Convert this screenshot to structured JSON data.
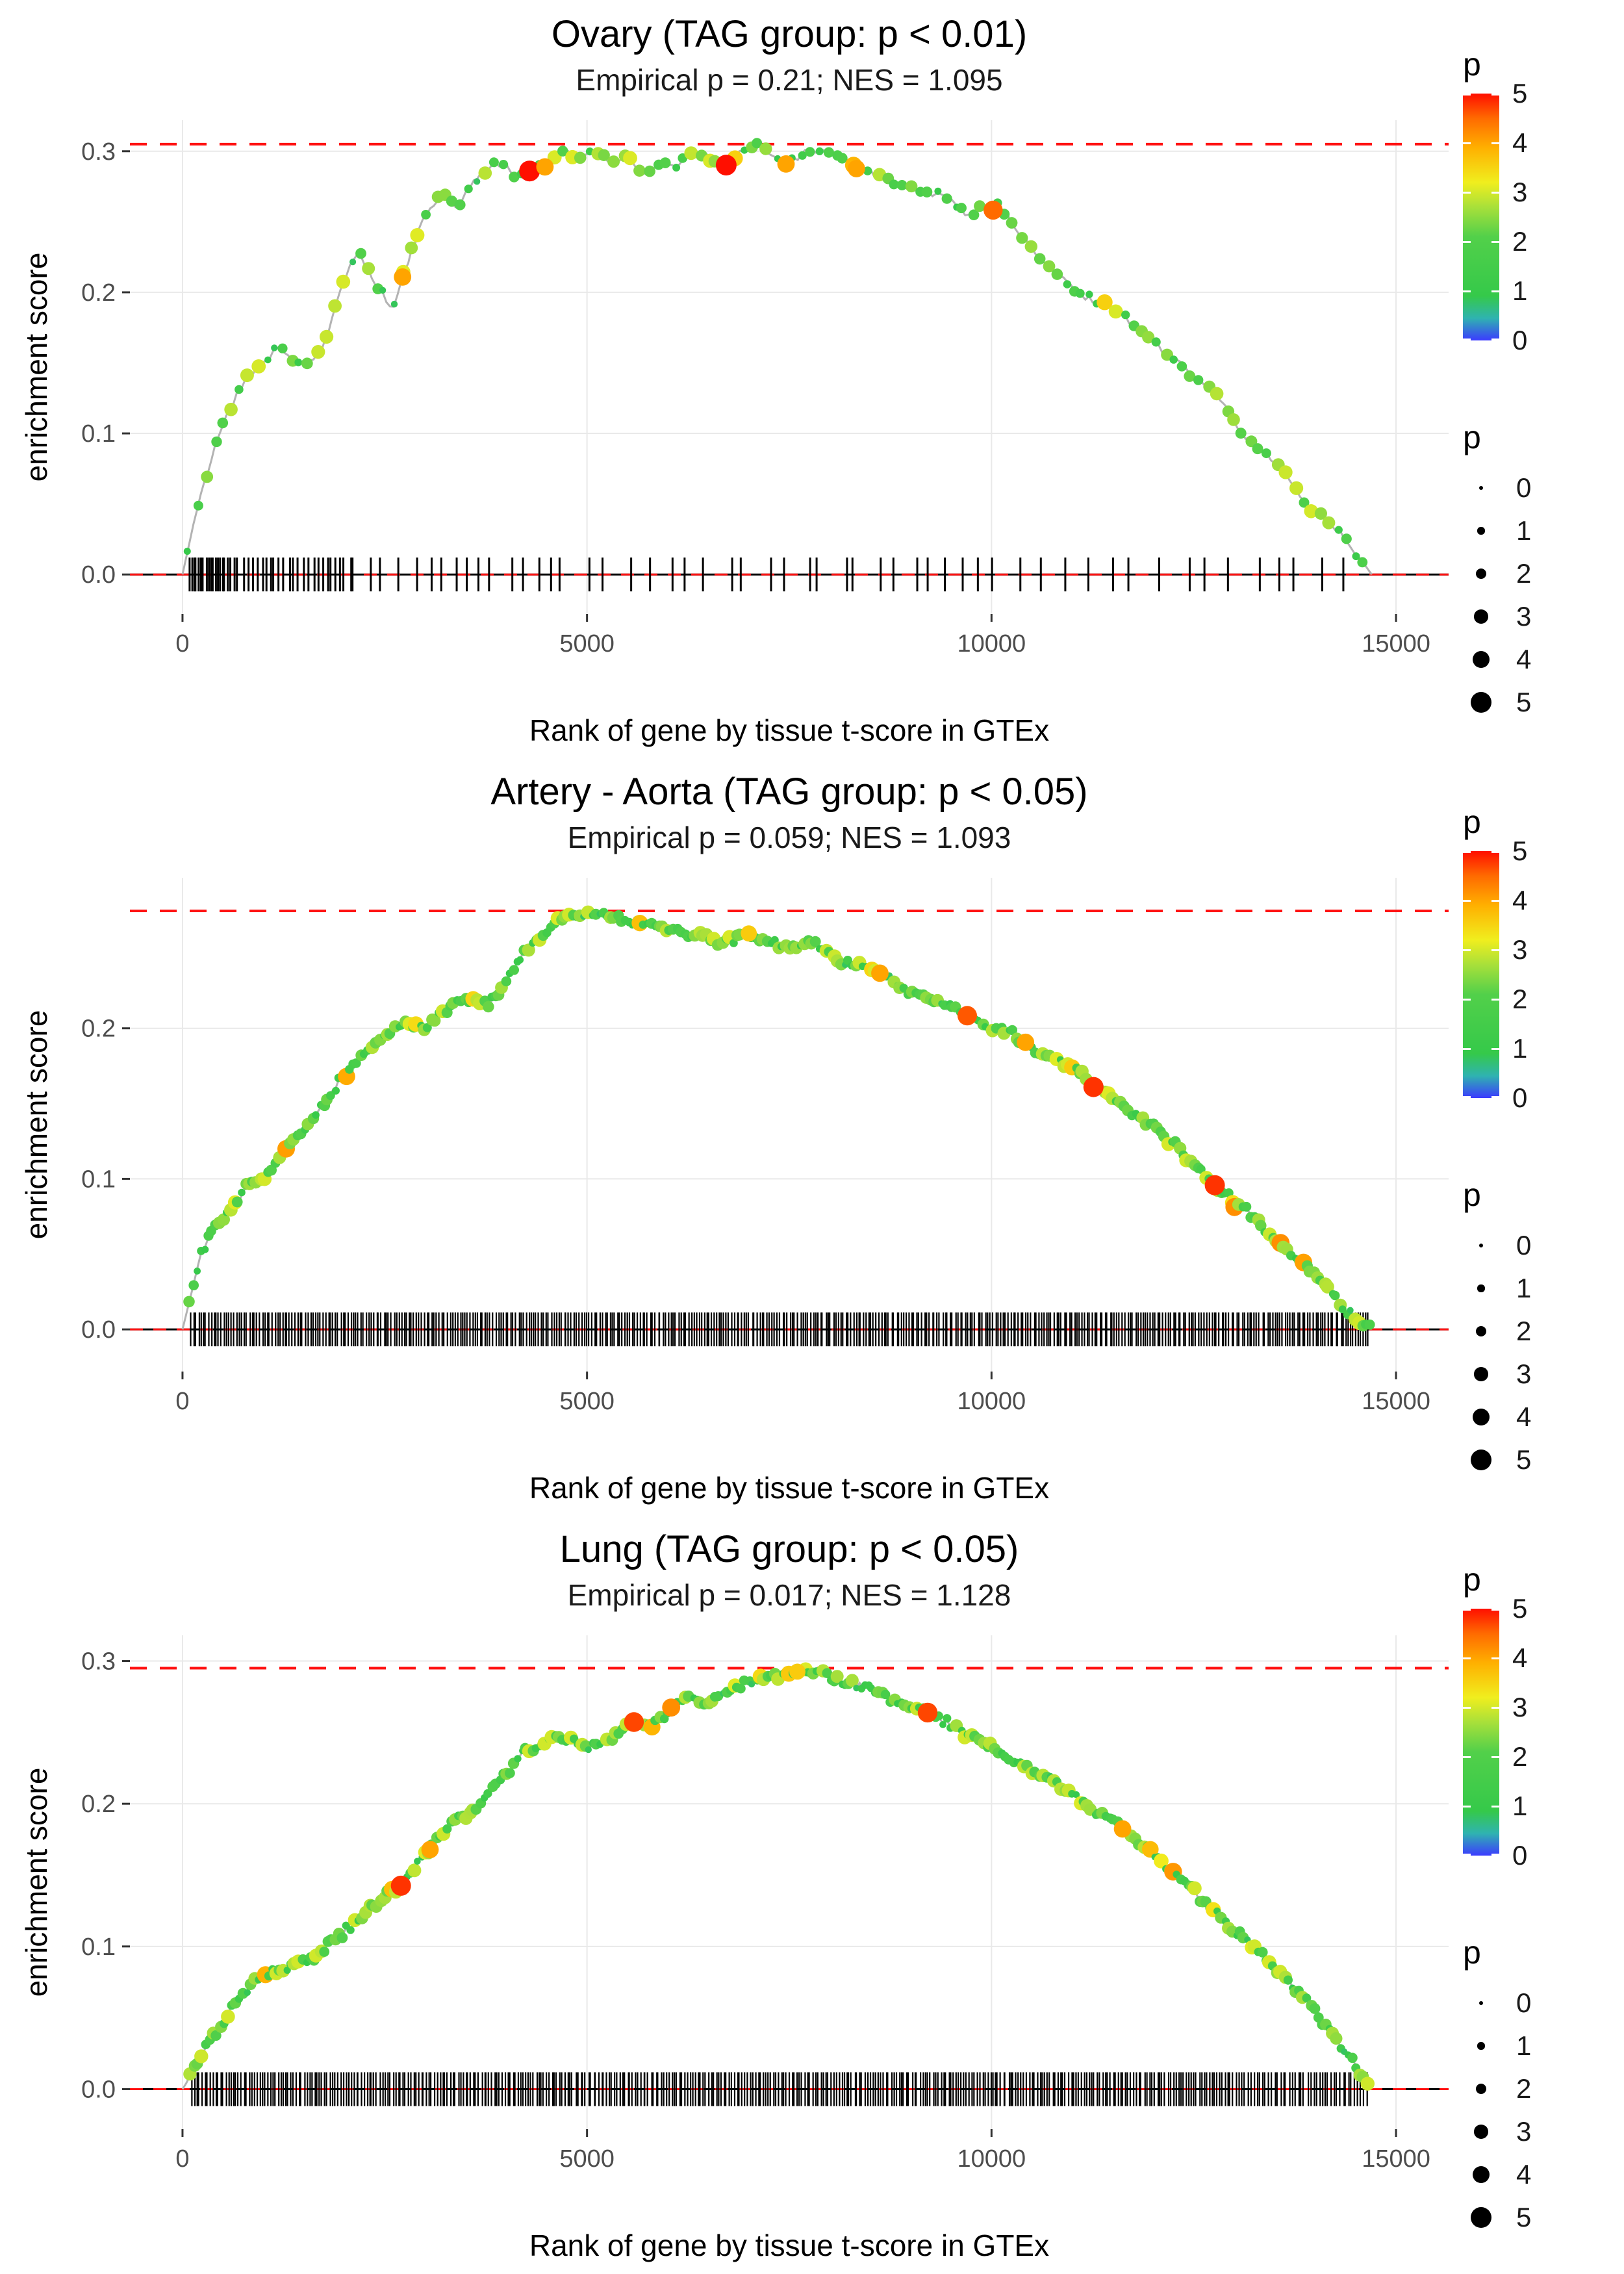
{
  "figure": {
    "background": "#ffffff",
    "accent_red": "#ff1212",
    "grid_color": "#e9e9e9",
    "axis_text_color": "#4d4d4d",
    "title_color": "#000000",
    "curve_color": "#b3b3b3",
    "rug_color": "#000000"
  },
  "colormap": [
    [
      0,
      "#3b3bff"
    ],
    [
      0.45,
      "#2fb3b0"
    ],
    [
      0.9,
      "#35c94a"
    ],
    [
      2.1,
      "#52d04a"
    ],
    [
      2.7,
      "#a8e03a"
    ],
    [
      3.2,
      "#f0ee1e"
    ],
    [
      3.9,
      "#ffb000"
    ],
    [
      4.5,
      "#ff6a00"
    ],
    [
      5,
      "#ff0f00"
    ]
  ],
  "chart_data": [
    {
      "type": "line",
      "title": "Ovary (TAG group: p < 0.01)",
      "subtitle": "Empirical p = 0.21; NES = 1.095",
      "xlabel": "Rank of gene by tissue t-score in GTEx",
      "ylabel": "enrichment score",
      "x_ticks": [
        0,
        5000,
        10000,
        15000
      ],
      "x_tick_labels": [
        "0",
        "5000",
        "10000",
        "15000"
      ],
      "y_ticks": [
        0,
        0.1,
        0.2,
        0.3
      ],
      "y_tick_labels": [
        "0.0",
        "0.1",
        "0.2",
        "0.3"
      ],
      "xlim": [
        -650,
        15650
      ],
      "ylim": [
        -0.028,
        0.322
      ],
      "max_es": 0.305,
      "zero_line": 0,
      "nes": 1.095,
      "empirical_p": 0.21,
      "curve": {
        "x": [
          0,
          150,
          300,
          450,
          600,
          800,
          1000,
          1150,
          1300,
          1500,
          1700,
          1850,
          2000,
          2150,
          2300,
          2450,
          2600,
          2750,
          2900,
          3050,
          3200,
          3400,
          3600,
          3800,
          4000,
          4150,
          4300,
          4500,
          4700,
          4900,
          5100,
          5300,
          5500,
          5700,
          5900,
          6100,
          6300,
          6500,
          6700,
          6900,
          7100,
          7300,
          7500,
          7700,
          7900,
          8100,
          8300,
          8500,
          8700,
          8900,
          9100,
          9300,
          9500,
          9700,
          9900,
          10100,
          10300,
          10500,
          10700,
          10900,
          11100,
          11300,
          11500,
          11700,
          11900,
          12100,
          12300,
          12500,
          12700,
          12900,
          13100,
          13300,
          13500,
          13700,
          13900,
          14100,
          14300,
          14500,
          14700
        ],
        "y": [
          0,
          0.04,
          0.07,
          0.1,
          0.12,
          0.14,
          0.15,
          0.16,
          0.155,
          0.15,
          0.155,
          0.18,
          0.21,
          0.23,
          0.215,
          0.2,
          0.19,
          0.215,
          0.24,
          0.26,
          0.27,
          0.26,
          0.28,
          0.29,
          0.29,
          0.28,
          0.285,
          0.29,
          0.3,
          0.295,
          0.3,
          0.29,
          0.295,
          0.285,
          0.29,
          0.29,
          0.3,
          0.295,
          0.29,
          0.3,
          0.305,
          0.295,
          0.29,
          0.3,
          0.3,
          0.295,
          0.29,
          0.285,
          0.28,
          0.275,
          0.27,
          0.27,
          0.265,
          0.255,
          0.26,
          0.26,
          0.245,
          0.23,
          0.22,
          0.21,
          0.2,
          0.19,
          0.19,
          0.18,
          0.17,
          0.16,
          0.15,
          0.14,
          0.13,
          0.12,
          0.1,
          0.09,
          0.08,
          0.065,
          0.05,
          0.04,
          0.03,
          0.015,
          0
        ]
      },
      "dots": {
        "start": 90,
        "end": 14660,
        "step": 105,
        "seed": 7
      },
      "highlights": [
        {
          "x": 2720,
          "p": 4
        },
        {
          "x": 4290,
          "p": 5
        },
        {
          "x": 4480,
          "p": 4
        },
        {
          "x": 6720,
          "p": 5
        },
        {
          "x": 7460,
          "p": 4
        },
        {
          "x": 8330,
          "p": 4
        },
        {
          "x": 10020,
          "p": 4.5
        }
      ],
      "noise_seed": 21,
      "rug": {
        "seed": 31,
        "width": 3,
        "segments": [
          {
            "from": 70,
            "to": 600,
            "count": 18
          },
          {
            "from": 600,
            "to": 2100,
            "count": 26
          },
          {
            "from": 2100,
            "to": 4600,
            "count": 15
          },
          {
            "from": 4600,
            "to": 7600,
            "count": 12
          },
          {
            "from": 7600,
            "to": 10200,
            "count": 12
          },
          {
            "from": 10200,
            "to": 12800,
            "count": 9
          },
          {
            "from": 12800,
            "to": 14600,
            "count": 6
          }
        ]
      },
      "legend": {
        "color_title": "p",
        "color_ticks": [
          0,
          1,
          2,
          3,
          4,
          5
        ],
        "size_title": "p",
        "size_ticks": [
          0,
          1,
          2,
          3,
          4,
          5
        ]
      }
    },
    {
      "type": "line",
      "title": "Artery - Aorta (TAG group: p < 0.05)",
      "subtitle": "Empirical p = 0.059; NES = 1.093",
      "xlabel": "Rank of gene by tissue t-score in GTEx",
      "ylabel": "enrichment score",
      "x_ticks": [
        0,
        5000,
        10000,
        15000
      ],
      "x_tick_labels": [
        "0",
        "5000",
        "10000",
        "15000"
      ],
      "y_ticks": [
        0,
        0.1,
        0.2
      ],
      "y_tick_labels": [
        "0.0",
        "0.1",
        "0.2"
      ],
      "xlim": [
        -650,
        15650
      ],
      "ylim": [
        -0.028,
        0.3
      ],
      "max_es": 0.278,
      "zero_line": 0,
      "nes": 1.093,
      "empirical_p": 0.059,
      "curve": {
        "x": [
          0,
          200,
          400,
          600,
          800,
          1000,
          1200,
          1400,
          1600,
          1800,
          2000,
          2200,
          2400,
          2600,
          2800,
          3000,
          3200,
          3400,
          3600,
          3800,
          4000,
          4200,
          4400,
          4600,
          4800,
          5000,
          5200,
          5400,
          5600,
          5800,
          6000,
          6200,
          6400,
          6600,
          6800,
          7000,
          7200,
          7400,
          7600,
          7800,
          8000,
          8200,
          8400,
          8600,
          8800,
          9000,
          9200,
          9400,
          9600,
          9800,
          10000,
          10200,
          10400,
          10600,
          10800,
          11000,
          11200,
          11400,
          11600,
          11800,
          12000,
          12200,
          12400,
          12600,
          12800,
          13000,
          13200,
          13400,
          13600,
          13800,
          14000,
          14200,
          14400,
          14700
        ],
        "y": [
          0,
          0.045,
          0.07,
          0.08,
          0.095,
          0.1,
          0.115,
          0.13,
          0.14,
          0.155,
          0.17,
          0.18,
          0.19,
          0.2,
          0.205,
          0.2,
          0.21,
          0.22,
          0.22,
          0.215,
          0.23,
          0.25,
          0.26,
          0.27,
          0.275,
          0.278,
          0.275,
          0.272,
          0.27,
          0.268,
          0.265,
          0.262,
          0.262,
          0.258,
          0.26,
          0.262,
          0.258,
          0.255,
          0.255,
          0.258,
          0.25,
          0.245,
          0.24,
          0.238,
          0.23,
          0.225,
          0.22,
          0.215,
          0.21,
          0.205,
          0.2,
          0.198,
          0.19,
          0.185,
          0.18,
          0.175,
          0.165,
          0.158,
          0.15,
          0.142,
          0.135,
          0.125,
          0.115,
          0.105,
          0.095,
          0.085,
          0.075,
          0.065,
          0.055,
          0.045,
          0.035,
          0.025,
          0.012,
          0
        ]
      },
      "dots": {
        "start": 90,
        "end": 14680,
        "step": 46,
        "seed": 8
      },
      "highlights": [
        {
          "x": 7000,
          "p": 3.6
        },
        {
          "x": 8620,
          "p": 4
        },
        {
          "x": 9700,
          "p": 4.6
        },
        {
          "x": 10420,
          "p": 4
        },
        {
          "x": 11260,
          "p": 4.8
        },
        {
          "x": 12760,
          "p": 4.8
        }
      ],
      "noise_seed": 22,
      "rug": {
        "seed": 32,
        "width": 2.2,
        "segments": [
          {
            "from": 90,
            "to": 14680,
            "count": 465
          }
        ]
      },
      "legend": {
        "color_title": "p",
        "color_ticks": [
          0,
          1,
          2,
          3,
          4,
          5
        ],
        "size_title": "p",
        "size_ticks": [
          0,
          1,
          2,
          3,
          4,
          5
        ]
      }
    },
    {
      "type": "line",
      "title": "Lung (TAG group: p < 0.05)",
      "subtitle": "Empirical p = 0.017; NES = 1.128",
      "xlabel": "Rank of gene by tissue t-score in GTEx",
      "ylabel": "enrichment score",
      "x_ticks": [
        0,
        5000,
        10000,
        15000
      ],
      "x_tick_labels": [
        "0",
        "5000",
        "10000",
        "15000"
      ],
      "y_ticks": [
        0,
        0.1,
        0.2,
        0.3
      ],
      "y_tick_labels": [
        "0.0",
        "0.1",
        "0.2",
        "0.3"
      ],
      "xlim": [
        -650,
        15650
      ],
      "ylim": [
        -0.028,
        0.318
      ],
      "max_es": 0.295,
      "zero_line": 0,
      "nes": 1.128,
      "empirical_p": 0.017,
      "curve": {
        "x": [
          0,
          200,
          400,
          600,
          800,
          1000,
          1200,
          1400,
          1600,
          1800,
          2000,
          2200,
          2400,
          2600,
          2800,
          3000,
          3200,
          3400,
          3600,
          3800,
          4000,
          4200,
          4400,
          4600,
          4800,
          5000,
          5200,
          5400,
          5600,
          5800,
          6000,
          6200,
          6400,
          6600,
          6800,
          7000,
          7200,
          7400,
          7600,
          7800,
          8000,
          8200,
          8400,
          8600,
          8800,
          9000,
          9200,
          9400,
          9600,
          9800,
          10000,
          10200,
          10400,
          10600,
          10800,
          11000,
          11200,
          11400,
          11600,
          11800,
          12000,
          12200,
          12400,
          12600,
          12800,
          13000,
          13200,
          13400,
          13600,
          13800,
          14000,
          14200,
          14400,
          14700
        ],
        "y": [
          0,
          0.02,
          0.04,
          0.055,
          0.07,
          0.08,
          0.085,
          0.085,
          0.09,
          0.1,
          0.11,
          0.12,
          0.13,
          0.14,
          0.15,
          0.165,
          0.18,
          0.19,
          0.195,
          0.21,
          0.22,
          0.235,
          0.24,
          0.245,
          0.245,
          0.24,
          0.245,
          0.25,
          0.26,
          0.255,
          0.265,
          0.275,
          0.27,
          0.275,
          0.28,
          0.285,
          0.288,
          0.29,
          0.292,
          0.295,
          0.29,
          0.286,
          0.282,
          0.278,
          0.272,
          0.268,
          0.265,
          0.258,
          0.252,
          0.246,
          0.24,
          0.232,
          0.226,
          0.22,
          0.214,
          0.208,
          0.198,
          0.19,
          0.185,
          0.175,
          0.165,
          0.155,
          0.145,
          0.133,
          0.122,
          0.112,
          0.102,
          0.09,
          0.08,
          0.068,
          0.055,
          0.04,
          0.025,
          0
        ]
      },
      "dots": {
        "start": 100,
        "end": 14660,
        "step": 46,
        "seed": 9
      },
      "highlights": [
        {
          "x": 2700,
          "p": 4.8
        },
        {
          "x": 3060,
          "p": 4
        },
        {
          "x": 5580,
          "p": 4.7
        },
        {
          "x": 6040,
          "p": 4.2
        },
        {
          "x": 7600,
          "p": 3.6
        },
        {
          "x": 9210,
          "p": 4.7
        },
        {
          "x": 11620,
          "p": 4
        }
      ],
      "noise_seed": 23,
      "rug": {
        "seed": 33,
        "width": 2.2,
        "segments": [
          {
            "from": 100,
            "to": 13000,
            "count": 400
          },
          {
            "from": 13000,
            "to": 14660,
            "count": 45
          }
        ]
      },
      "legend": {
        "color_title": "p",
        "color_ticks": [
          0,
          1,
          2,
          3,
          4,
          5
        ],
        "size_title": "p",
        "size_ticks": [
          0,
          1,
          2,
          3,
          4,
          5
        ]
      }
    }
  ]
}
